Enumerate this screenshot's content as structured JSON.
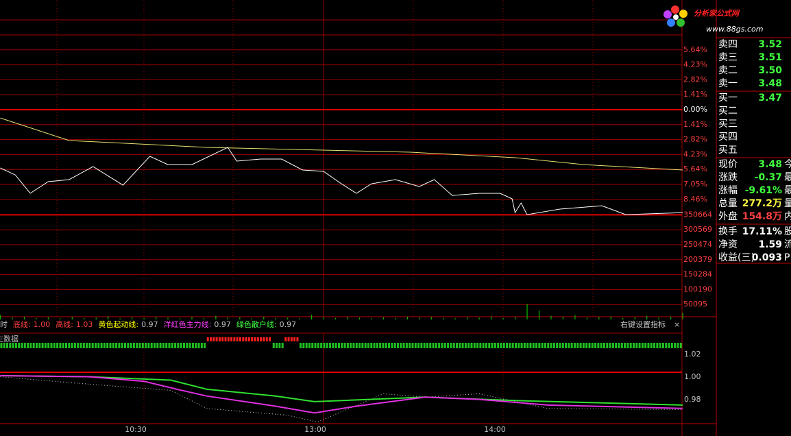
{
  "price_chart": {
    "price_line": {
      "color": "#ffffff",
      "x": [
        12,
        17,
        22,
        28,
        35,
        43,
        53,
        62,
        68,
        76,
        88,
        91,
        99,
        106,
        113,
        120,
        126,
        131,
        136,
        144,
        152,
        157,
        163,
        172,
        179,
        183,
        184,
        186,
        188,
        199,
        213,
        221,
        240
      ],
      "values": [
        -5.5,
        -6.15,
        -7.89,
        -6.79,
        -6.6,
        -5.37,
        -7.12,
        -4.4,
        -5.18,
        -5.18,
        -3.56,
        -4.85,
        -4.66,
        -4.66,
        -5.69,
        -5.82,
        -6.99,
        -7.89,
        -6.99,
        -6.6,
        -7.25,
        -6.6,
        -8.09,
        -7.89,
        -7.89,
        -8.41,
        -9.71,
        -8.8,
        -9.9,
        -9.38,
        -9.06,
        -9.9,
        -9.71
      ]
    },
    "avg_line": {
      "color": "#e8e070",
      "x": [
        12,
        35,
        81,
        149,
        184,
        207,
        240
      ],
      "values": [
        -0.78,
        -2.91,
        -3.56,
        -4.01,
        -4.53,
        -5.18,
        -5.69
      ]
    },
    "pct_ticks": [
      {
        "value": 5.64,
        "label": "5.64%"
      },
      {
        "value": 4.23,
        "label": "4.23%"
      },
      {
        "value": 2.82,
        "label": "2.82%"
      },
      {
        "value": 1.41,
        "label": "1.41%"
      },
      {
        "value": 0,
        "label": "0.00%"
      },
      {
        "value": -1.41,
        "label": "1.41%"
      },
      {
        "value": -2.82,
        "label": "2.82%"
      },
      {
        "value": -4.23,
        "label": "4.23%"
      },
      {
        "value": -5.64,
        "label": "5.64%"
      },
      {
        "value": -7.05,
        "label": "7.05%"
      },
      {
        "value": -8.46,
        "label": "8.46%"
      }
    ],
    "volume_ticks": [
      350664,
      300569,
      250474,
      200379,
      150284,
      100190,
      50095
    ],
    "volume": {
      "color": "#00c000",
      "x": [
        12,
        16,
        20,
        24,
        28,
        32,
        36,
        40,
        44,
        48,
        52,
        56,
        60,
        64,
        68,
        72,
        76,
        80,
        84,
        88,
        92,
        96,
        100,
        104,
        108,
        112,
        116,
        120,
        124,
        128,
        132,
        136,
        140,
        144,
        148,
        152,
        156,
        160,
        164,
        168,
        172,
        176,
        180,
        184,
        188,
        192,
        196,
        200,
        204,
        208,
        212,
        216,
        220,
        224,
        228,
        232,
        236,
        240
      ],
      "values": [
        14000,
        6000,
        9000,
        5000,
        7000,
        4000,
        8000,
        5000,
        6000,
        11000,
        4000,
        7000,
        5000,
        9000,
        6000,
        4000,
        8000,
        5000,
        12000,
        6000,
        7000,
        4000,
        9000,
        5000,
        6000,
        4000,
        15000,
        7000,
        5000,
        8000,
        6000,
        4000,
        7000,
        5000,
        9000,
        6000,
        8000,
        5000,
        4000,
        7000,
        6000,
        10000,
        5000,
        8000,
        52000,
        30000,
        12000,
        9000,
        14000,
        6000,
        8000,
        10000,
        5000,
        7000,
        12000,
        6000,
        9000,
        22000
      ]
    },
    "time_ticks": [
      {
        "value": 60,
        "label": "10:30"
      },
      {
        "value": 120,
        "label": "13:00"
      },
      {
        "value": 180,
        "label": "14:00"
      }
    ]
  },
  "indicator": {
    "prefix": "时",
    "legend": [
      {
        "label": "底线:",
        "value": "1.00",
        "color": "#ff4040",
        "value_color": "#ff4040"
      },
      {
        "label": "高线:",
        "value": "1.03",
        "color": "#ff4040",
        "value_color": "#ff4040"
      },
      {
        "label": "黄色起动线:",
        "value": "0.97",
        "color": "#ffff00",
        "value_color": "#c0c0c0"
      },
      {
        "label": "洋红色主力线:",
        "value": "0.97",
        "color": "#ff40ff",
        "value_color": "#c0c0c0"
      },
      {
        "label": "绿色散户线:",
        "value": "0.97",
        "color": "#40ff40",
        "value_color": "#c0c0c0"
      }
    ],
    "settings": "右键设置指标",
    "close": "×",
    "note": "生数据",
    "ticks": [
      1.02,
      {
        "value": 1,
        "label": "1.00"
      },
      0.98
    ],
    "strip": [
      {
        "from": 12,
        "to": 81,
        "color": "#20c020"
      },
      {
        "from": 81,
        "to": 103,
        "color": "#ff2020"
      },
      {
        "from": 103,
        "to": 107,
        "color": "#20c020"
      },
      {
        "from": 107,
        "to": 112,
        "color": "#ff2020"
      },
      {
        "from": 112,
        "to": 240,
        "color": "#20c020"
      }
    ],
    "green_line": {
      "color": "#30e030",
      "x": [
        12,
        42,
        69,
        81,
        104,
        117,
        154,
        184,
        240
      ],
      "values": [
        0.997,
        0.996,
        0.993,
        0.985,
        0.979,
        0.974,
        0.978,
        0.975,
        0.971
      ]
    },
    "magenta_line": {
      "color": "#e030e0",
      "x": [
        12,
        42,
        60,
        71,
        81,
        104,
        117,
        131,
        154,
        172,
        195,
        240
      ],
      "values": [
        0.997,
        0.996,
        0.992,
        0.985,
        0.979,
        0.97,
        0.964,
        0.97,
        0.978,
        0.976,
        0.971,
        0.968
      ]
    },
    "white_line": {
      "color": "#d0d0d0",
      "x": [
        12,
        39,
        69,
        81,
        108,
        118,
        140,
        154,
        172,
        195,
        240
      ],
      "values": [
        0.996,
        0.99,
        0.984,
        0.968,
        0.962,
        0.956,
        0.981,
        0.978,
        0.981,
        0.968,
        0.967
      ]
    }
  },
  "quotes": {
    "asks": [
      {
        "label": "卖四",
        "price": "3.52"
      },
      {
        "label": "卖三",
        "price": "3.51"
      },
      {
        "label": "卖二",
        "price": "3.50"
      },
      {
        "label": "卖一",
        "price": "3.48"
      }
    ],
    "bids": [
      {
        "label": "买一",
        "price": "3.47"
      },
      {
        "label": "买二"
      },
      {
        "label": "买三"
      },
      {
        "label": "买四"
      },
      {
        "label": "买五"
      }
    ],
    "stats": [
      {
        "label": "现价",
        "value": "3.48",
        "color": "#40ff40",
        "tail": "今"
      },
      {
        "label": "涨跌",
        "value": "-0.37",
        "color": "#40ff40",
        "tail": "最"
      },
      {
        "label": "涨幅",
        "value": "-9.61%",
        "color": "#40ff40",
        "tail": "最"
      },
      {
        "label": "总量",
        "value": "277.2万",
        "color": "#ffff40",
        "tail": "量"
      },
      {
        "label": "外盘",
        "value": "154.8万",
        "color": "#ff4040",
        "tail": "内"
      }
    ],
    "stats2": [
      {
        "label": "换手",
        "value": "17.11%",
        "color": "#ffffff",
        "tail": "股"
      },
      {
        "label": "净资",
        "value": "1.59",
        "color": "#ffffff",
        "tail": "流"
      },
      {
        "label": "收益(三)",
        "value": "0.093",
        "color": "#ffffff",
        "tail": "P"
      }
    ]
  },
  "logo": {
    "title": "分析家公式网",
    "url": "www.88gs.com"
  }
}
